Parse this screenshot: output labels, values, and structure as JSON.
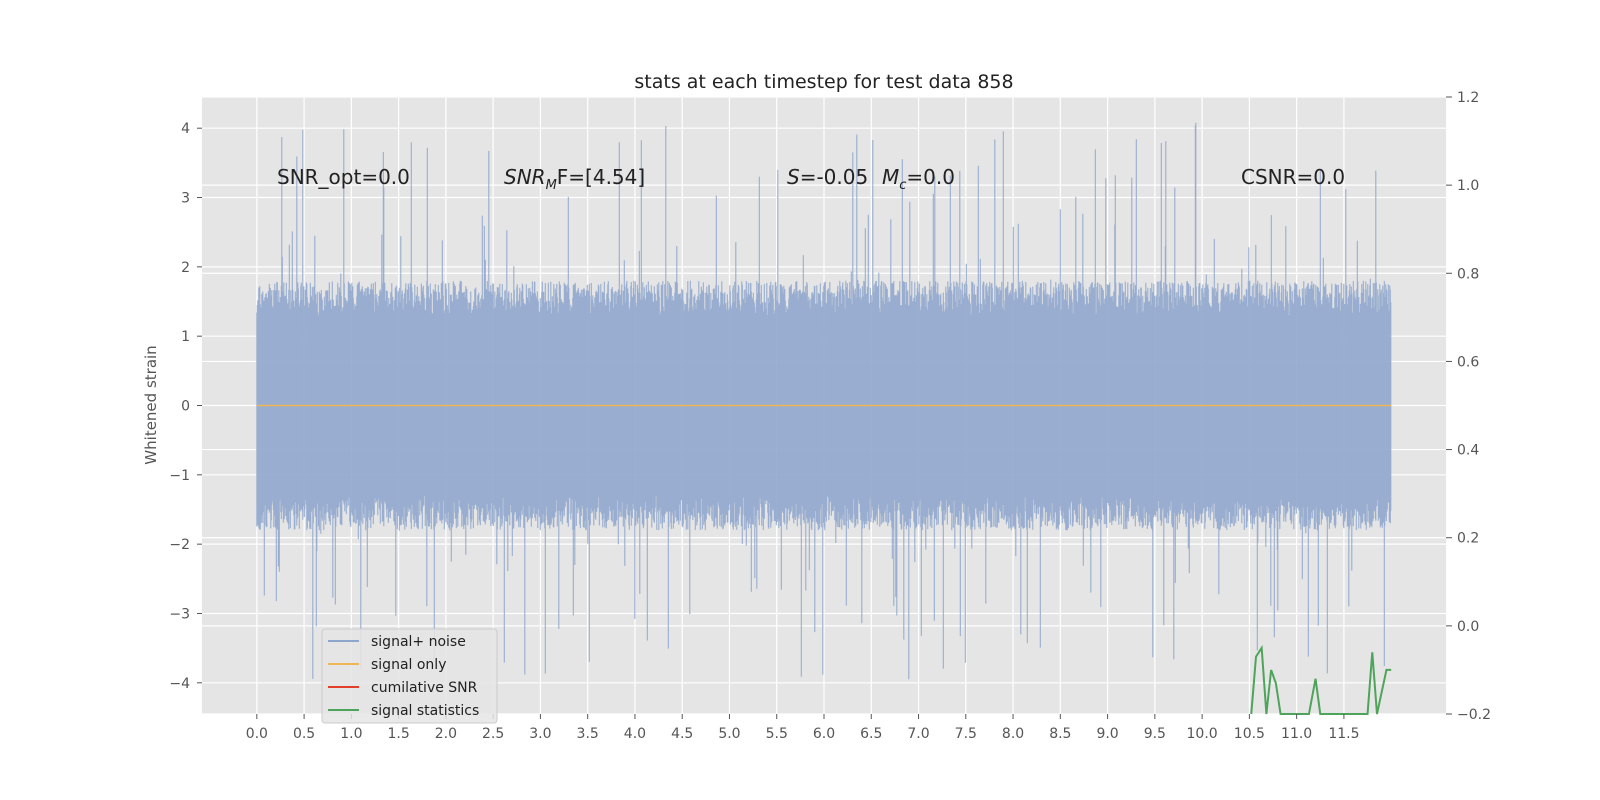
{
  "chart_data": {
    "type": "line",
    "title": "stats at each timestep for test data 858",
    "xlabel": "",
    "ylabel": "Whitened strain",
    "y2label": "",
    "xlim": [
      -0.58,
      12.58
    ],
    "ylim": [
      -4.45,
      4.45
    ],
    "y2lim": [
      -0.2,
      1.2
    ],
    "xticks": [
      "0.0",
      "0.5",
      "1.0",
      "1.5",
      "2.0",
      "2.5",
      "3.0",
      "3.5",
      "4.0",
      "4.5",
      "5.0",
      "5.5",
      "6.0",
      "6.5",
      "7.0",
      "7.5",
      "8.0",
      "8.5",
      "9.0",
      "9.5",
      "10.0",
      "10.5",
      "11.0",
      "11.5"
    ],
    "yticks": [
      "−4",
      "−3",
      "−2",
      "−1",
      "0",
      "1",
      "2",
      "3",
      "4"
    ],
    "y2ticks": [
      "−0.2",
      "0.0",
      "0.2",
      "0.4",
      "0.6",
      "0.8",
      "1.0",
      "1.2"
    ],
    "grid": true,
    "legend_position": "lower-left",
    "annotations": {
      "snr_opt": "SNR_opt=0.0",
      "snr_mf_prefix": "SNR",
      "snr_mf_sub": "M",
      "snr_mf_suffix": "F=[4.54]",
      "s_var": "S",
      "s_value": "=-0.05",
      "mc_var": "M",
      "mc_sub": "c",
      "mc_value": "=0.0",
      "csnr": "CSNR=0.0"
    },
    "series": [
      {
        "name": "signal+ noise",
        "color": "#8fa6cc",
        "axis": "left",
        "x_range": [
          0.0,
          12.0
        ],
        "envelope": {
          "typical_upper": 1.8,
          "typical_lower": -1.8,
          "peak_max": 4.1,
          "peak_min": -3.95
        }
      },
      {
        "name": "signal only",
        "color": "#f0b655",
        "axis": "left",
        "x": [
          0.0,
          12.0
        ],
        "values": [
          0.0,
          0.0
        ]
      },
      {
        "name": "cumilative SNR",
        "color": "#e2402a",
        "axis": "right",
        "x": [],
        "values": []
      },
      {
        "name": "signal statistics",
        "color": "#4ea45a",
        "axis": "right",
        "x": [
          10.52,
          10.57,
          10.63,
          10.68,
          10.73,
          10.78,
          10.83,
          10.88,
          11.13,
          11.2,
          11.25,
          11.75,
          11.8,
          11.85,
          11.9,
          11.95,
          12.0
        ],
        "values": [
          -0.2,
          -0.07,
          -0.05,
          -0.2,
          -0.1,
          -0.13,
          -0.2,
          -0.2,
          -0.2,
          -0.12,
          -0.2,
          -0.2,
          -0.06,
          -0.2,
          -0.15,
          -0.1,
          -0.1
        ]
      }
    ]
  }
}
